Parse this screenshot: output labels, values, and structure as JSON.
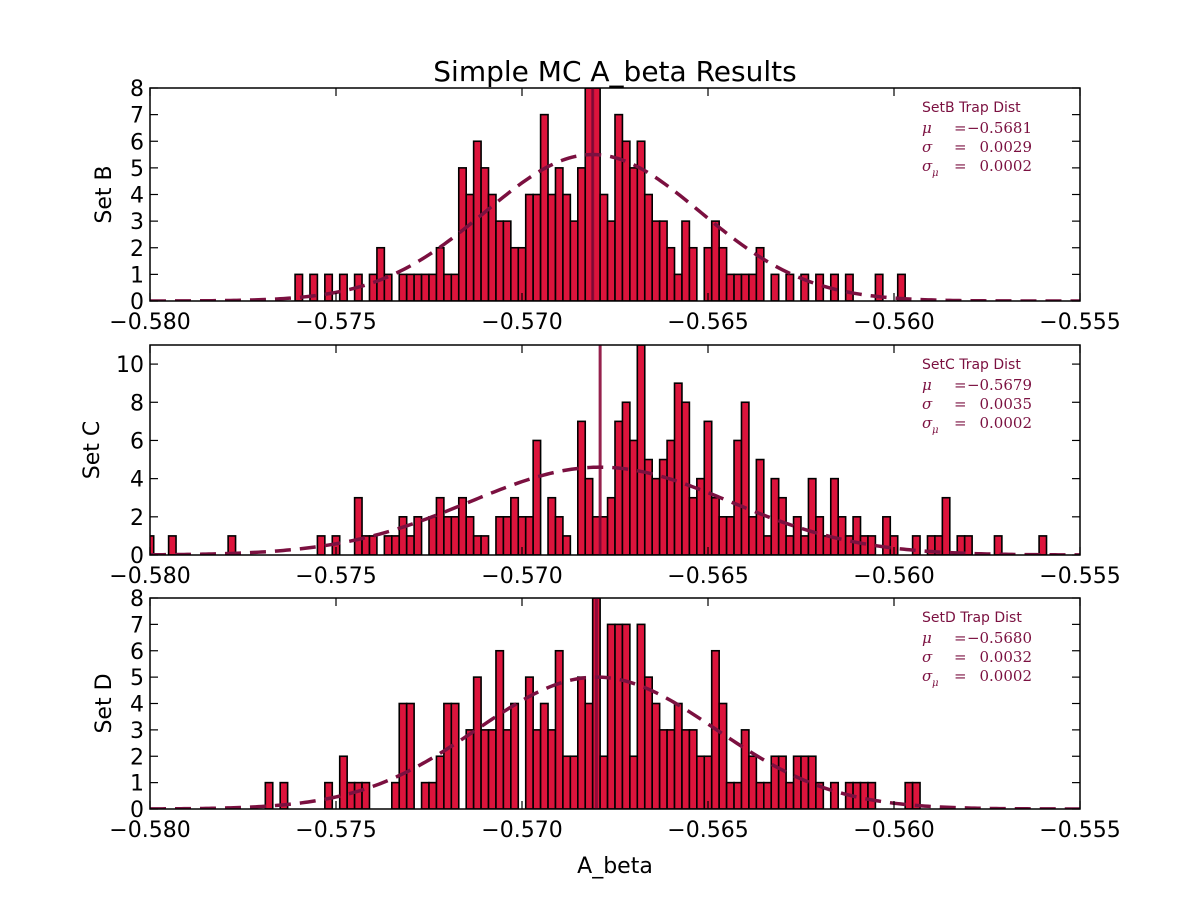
{
  "figure": {
    "title": "Simple MC A_beta Results",
    "xlabel": "A_beta"
  },
  "colors": {
    "bar_fill": "#dc143c",
    "bar_edge": "#000000",
    "fit_line": "#7b1040",
    "median_line": "#8b0a3a",
    "annotation": "#7b1040"
  },
  "chart_data": [
    {
      "type": "bar",
      "ylabel": "Set B",
      "xlim": [
        -0.58,
        -0.555
      ],
      "ylim": [
        0,
        8
      ],
      "xticks": [
        -0.58,
        -0.575,
        -0.57,
        -0.565,
        -0.56,
        -0.555
      ],
      "xtick_labels": [
        "−0.580",
        "−0.575",
        "−0.570",
        "−0.565",
        "−0.560",
        "−0.555"
      ],
      "yticks": [
        0,
        1,
        2,
        3,
        4,
        5,
        6,
        7,
        8
      ],
      "grid": false,
      "bin_width": 0.0002,
      "hist": [
        [
          -0.576,
          1
        ],
        [
          -0.5756,
          1
        ],
        [
          -0.5752,
          1
        ],
        [
          -0.5748,
          1
        ],
        [
          -0.5744,
          1
        ],
        [
          -0.574,
          1
        ],
        [
          -0.5738,
          2
        ],
        [
          -0.5736,
          1
        ],
        [
          -0.5732,
          1
        ],
        [
          -0.573,
          1
        ],
        [
          -0.5728,
          1
        ],
        [
          -0.5726,
          1
        ],
        [
          -0.5724,
          1
        ],
        [
          -0.5722,
          2
        ],
        [
          -0.572,
          1
        ],
        [
          -0.5718,
          1
        ],
        [
          -0.5716,
          5
        ],
        [
          -0.5714,
          4
        ],
        [
          -0.5712,
          6
        ],
        [
          -0.571,
          5
        ],
        [
          -0.5708,
          4
        ],
        [
          -0.5706,
          3
        ],
        [
          -0.5704,
          3
        ],
        [
          -0.5702,
          2
        ],
        [
          -0.57,
          2
        ],
        [
          -0.5698,
          4
        ],
        [
          -0.5696,
          4
        ],
        [
          -0.5694,
          7
        ],
        [
          -0.5692,
          4
        ],
        [
          -0.569,
          5
        ],
        [
          -0.5688,
          4
        ],
        [
          -0.5686,
          3
        ],
        [
          -0.5684,
          5
        ],
        [
          -0.5682,
          8
        ],
        [
          -0.568,
          8
        ],
        [
          -0.5678,
          4
        ],
        [
          -0.5676,
          3
        ],
        [
          -0.5674,
          7
        ],
        [
          -0.5672,
          6
        ],
        [
          -0.567,
          5
        ],
        [
          -0.5668,
          6
        ],
        [
          -0.5666,
          4
        ],
        [
          -0.5664,
          3
        ],
        [
          -0.5662,
          3
        ],
        [
          -0.566,
          2
        ],
        [
          -0.5658,
          1
        ],
        [
          -0.5656,
          3
        ],
        [
          -0.5654,
          2
        ],
        [
          -0.565,
          2
        ],
        [
          -0.5648,
          3
        ],
        [
          -0.5646,
          2
        ],
        [
          -0.5644,
          1
        ],
        [
          -0.5642,
          1
        ],
        [
          -0.564,
          1
        ],
        [
          -0.5638,
          1
        ],
        [
          -0.5636,
          2
        ],
        [
          -0.5632,
          1
        ],
        [
          -0.5628,
          1
        ],
        [
          -0.5624,
          1
        ],
        [
          -0.562,
          1
        ],
        [
          -0.5616,
          1
        ],
        [
          -0.5612,
          1
        ],
        [
          -0.5604,
          1
        ],
        [
          -0.5598,
          1
        ]
      ],
      "median_line": -0.5681,
      "fit": {
        "mu": -0.5681,
        "sigma": 0.0029,
        "peak": 5.5
      },
      "annotation": {
        "title": "SetB Trap Dist",
        "lines": [
          {
            "sym": "μ",
            "sub": "",
            "eq": "=",
            "value": "−0.5681"
          },
          {
            "sym": "σ",
            "sub": "",
            "eq": "=",
            "value": "0.0029"
          },
          {
            "sym": "σ",
            "sub": "μ",
            "eq": "=",
            "value": "0.0002"
          }
        ]
      }
    },
    {
      "type": "bar",
      "ylabel": "Set C",
      "xlim": [
        -0.58,
        -0.555
      ],
      "ylim": [
        0,
        11
      ],
      "xticks": [
        -0.58,
        -0.575,
        -0.57,
        -0.565,
        -0.56,
        -0.555
      ],
      "xtick_labels": [
        "−0.580",
        "−0.575",
        "−0.570",
        "−0.565",
        "−0.560",
        "−0.555"
      ],
      "yticks": [
        0,
        2,
        4,
        6,
        8,
        10
      ],
      "grid": false,
      "bin_width": 0.0002,
      "hist": [
        [
          -0.58,
          1
        ],
        [
          -0.5794,
          1
        ],
        [
          -0.5778,
          1
        ],
        [
          -0.5754,
          1
        ],
        [
          -0.575,
          1
        ],
        [
          -0.5744,
          3
        ],
        [
          -0.5742,
          1
        ],
        [
          -0.574,
          1
        ],
        [
          -0.5736,
          1
        ],
        [
          -0.5734,
          1
        ],
        [
          -0.5732,
          2
        ],
        [
          -0.573,
          1
        ],
        [
          -0.5728,
          2
        ],
        [
          -0.5724,
          2
        ],
        [
          -0.5722,
          3
        ],
        [
          -0.572,
          2
        ],
        [
          -0.5718,
          2
        ],
        [
          -0.5716,
          3
        ],
        [
          -0.5714,
          2
        ],
        [
          -0.5712,
          1
        ],
        [
          -0.571,
          1
        ],
        [
          -0.5706,
          2
        ],
        [
          -0.5704,
          2
        ],
        [
          -0.5702,
          3
        ],
        [
          -0.57,
          2
        ],
        [
          -0.5698,
          2
        ],
        [
          -0.5696,
          6
        ],
        [
          -0.5692,
          3
        ],
        [
          -0.569,
          2
        ],
        [
          -0.5688,
          1
        ],
        [
          -0.5684,
          7
        ],
        [
          -0.5682,
          4
        ],
        [
          -0.568,
          2
        ],
        [
          -0.5678,
          2
        ],
        [
          -0.5676,
          3
        ],
        [
          -0.5674,
          7
        ],
        [
          -0.5672,
          8
        ],
        [
          -0.567,
          6
        ],
        [
          -0.5668,
          11
        ],
        [
          -0.5666,
          5
        ],
        [
          -0.5664,
          4
        ],
        [
          -0.5662,
          5
        ],
        [
          -0.566,
          6
        ],
        [
          -0.5658,
          9
        ],
        [
          -0.5656,
          8
        ],
        [
          -0.5654,
          3
        ],
        [
          -0.5652,
          4
        ],
        [
          -0.565,
          7
        ],
        [
          -0.5648,
          3
        ],
        [
          -0.5646,
          2
        ],
        [
          -0.5644,
          2
        ],
        [
          -0.5642,
          6
        ],
        [
          -0.564,
          8
        ],
        [
          -0.5638,
          2
        ],
        [
          -0.5636,
          5
        ],
        [
          -0.5634,
          1
        ],
        [
          -0.5632,
          4
        ],
        [
          -0.563,
          3
        ],
        [
          -0.5628,
          1
        ],
        [
          -0.5626,
          2
        ],
        [
          -0.5624,
          1
        ],
        [
          -0.5622,
          4
        ],
        [
          -0.562,
          2
        ],
        [
          -0.5618,
          1
        ],
        [
          -0.5616,
          4
        ],
        [
          -0.5614,
          2
        ],
        [
          -0.5612,
          1
        ],
        [
          -0.561,
          2
        ],
        [
          -0.5608,
          1
        ],
        [
          -0.5606,
          1
        ],
        [
          -0.5602,
          2
        ],
        [
          -0.56,
          1
        ],
        [
          -0.5594,
          1
        ],
        [
          -0.559,
          1
        ],
        [
          -0.5588,
          1
        ],
        [
          -0.5586,
          3
        ],
        [
          -0.5582,
          1
        ],
        [
          -0.558,
          1
        ],
        [
          -0.5572,
          1
        ],
        [
          -0.556,
          1
        ]
      ],
      "median_line": -0.5679,
      "fit": {
        "mu": -0.5679,
        "sigma": 0.0035,
        "peak": 4.6
      },
      "annotation": {
        "title": "SetC Trap Dist",
        "lines": [
          {
            "sym": "μ",
            "sub": "",
            "eq": "=",
            "value": "−0.5679"
          },
          {
            "sym": "σ",
            "sub": "",
            "eq": "=",
            "value": "0.0035"
          },
          {
            "sym": "σ",
            "sub": "μ",
            "eq": "=",
            "value": "0.0002"
          }
        ]
      }
    },
    {
      "type": "bar",
      "ylabel": "Set D",
      "xlim": [
        -0.58,
        -0.555
      ],
      "ylim": [
        0,
        8
      ],
      "xticks": [
        -0.58,
        -0.575,
        -0.57,
        -0.565,
        -0.56,
        -0.555
      ],
      "xtick_labels": [
        "−0.580",
        "−0.575",
        "−0.570",
        "−0.565",
        "−0.560",
        "−0.555"
      ],
      "yticks": [
        0,
        1,
        2,
        3,
        4,
        5,
        6,
        7,
        8
      ],
      "grid": false,
      "bin_width": 0.0002,
      "hist": [
        [
          -0.5768,
          1
        ],
        [
          -0.5764,
          1
        ],
        [
          -0.5752,
          1
        ],
        [
          -0.5748,
          2
        ],
        [
          -0.5746,
          1
        ],
        [
          -0.5744,
          1
        ],
        [
          -0.5742,
          1
        ],
        [
          -0.5734,
          1
        ],
        [
          -0.5732,
          4
        ],
        [
          -0.573,
          4
        ],
        [
          -0.5726,
          1
        ],
        [
          -0.5724,
          1
        ],
        [
          -0.5722,
          2
        ],
        [
          -0.572,
          4
        ],
        [
          -0.5718,
          4
        ],
        [
          -0.5714,
          3
        ],
        [
          -0.5712,
          5
        ],
        [
          -0.571,
          3
        ],
        [
          -0.5708,
          3
        ],
        [
          -0.5706,
          6
        ],
        [
          -0.5704,
          3
        ],
        [
          -0.5702,
          4
        ],
        [
          -0.5698,
          5
        ],
        [
          -0.5696,
          3
        ],
        [
          -0.5694,
          4
        ],
        [
          -0.5692,
          3
        ],
        [
          -0.569,
          6
        ],
        [
          -0.5688,
          2
        ],
        [
          -0.5686,
          2
        ],
        [
          -0.5684,
          5
        ],
        [
          -0.5682,
          4
        ],
        [
          -0.568,
          8
        ],
        [
          -0.5678,
          2
        ],
        [
          -0.5676,
          7
        ],
        [
          -0.5674,
          7
        ],
        [
          -0.5672,
          7
        ],
        [
          -0.567,
          2
        ],
        [
          -0.5668,
          7
        ],
        [
          -0.5666,
          5
        ],
        [
          -0.5664,
          4
        ],
        [
          -0.5662,
          3
        ],
        [
          -0.566,
          3
        ],
        [
          -0.5658,
          4
        ],
        [
          -0.5656,
          3
        ],
        [
          -0.5654,
          3
        ],
        [
          -0.5652,
          2
        ],
        [
          -0.565,
          2
        ],
        [
          -0.5648,
          6
        ],
        [
          -0.5646,
          4
        ],
        [
          -0.5644,
          1
        ],
        [
          -0.5642,
          1
        ],
        [
          -0.564,
          3
        ],
        [
          -0.5638,
          2
        ],
        [
          -0.5636,
          1
        ],
        [
          -0.5634,
          1
        ],
        [
          -0.5632,
          2
        ],
        [
          -0.563,
          2
        ],
        [
          -0.5628,
          1
        ],
        [
          -0.5626,
          2
        ],
        [
          -0.5624,
          2
        ],
        [
          -0.5622,
          2
        ],
        [
          -0.562,
          1
        ],
        [
          -0.5616,
          1
        ],
        [
          -0.5612,
          1
        ],
        [
          -0.561,
          1
        ],
        [
          -0.5608,
          1
        ],
        [
          -0.5606,
          1
        ],
        [
          -0.5596,
          1
        ],
        [
          -0.5594,
          1
        ]
      ],
      "median_line": -0.568,
      "fit": {
        "mu": -0.568,
        "sigma": 0.0032,
        "peak": 5.0
      },
      "annotation": {
        "title": "SetD Trap Dist",
        "lines": [
          {
            "sym": "μ",
            "sub": "",
            "eq": "=",
            "value": "−0.5680"
          },
          {
            "sym": "σ",
            "sub": "",
            "eq": "=",
            "value": "0.0032"
          },
          {
            "sym": "σ",
            "sub": "μ",
            "eq": "=",
            "value": "0.0002"
          }
        ]
      }
    }
  ]
}
